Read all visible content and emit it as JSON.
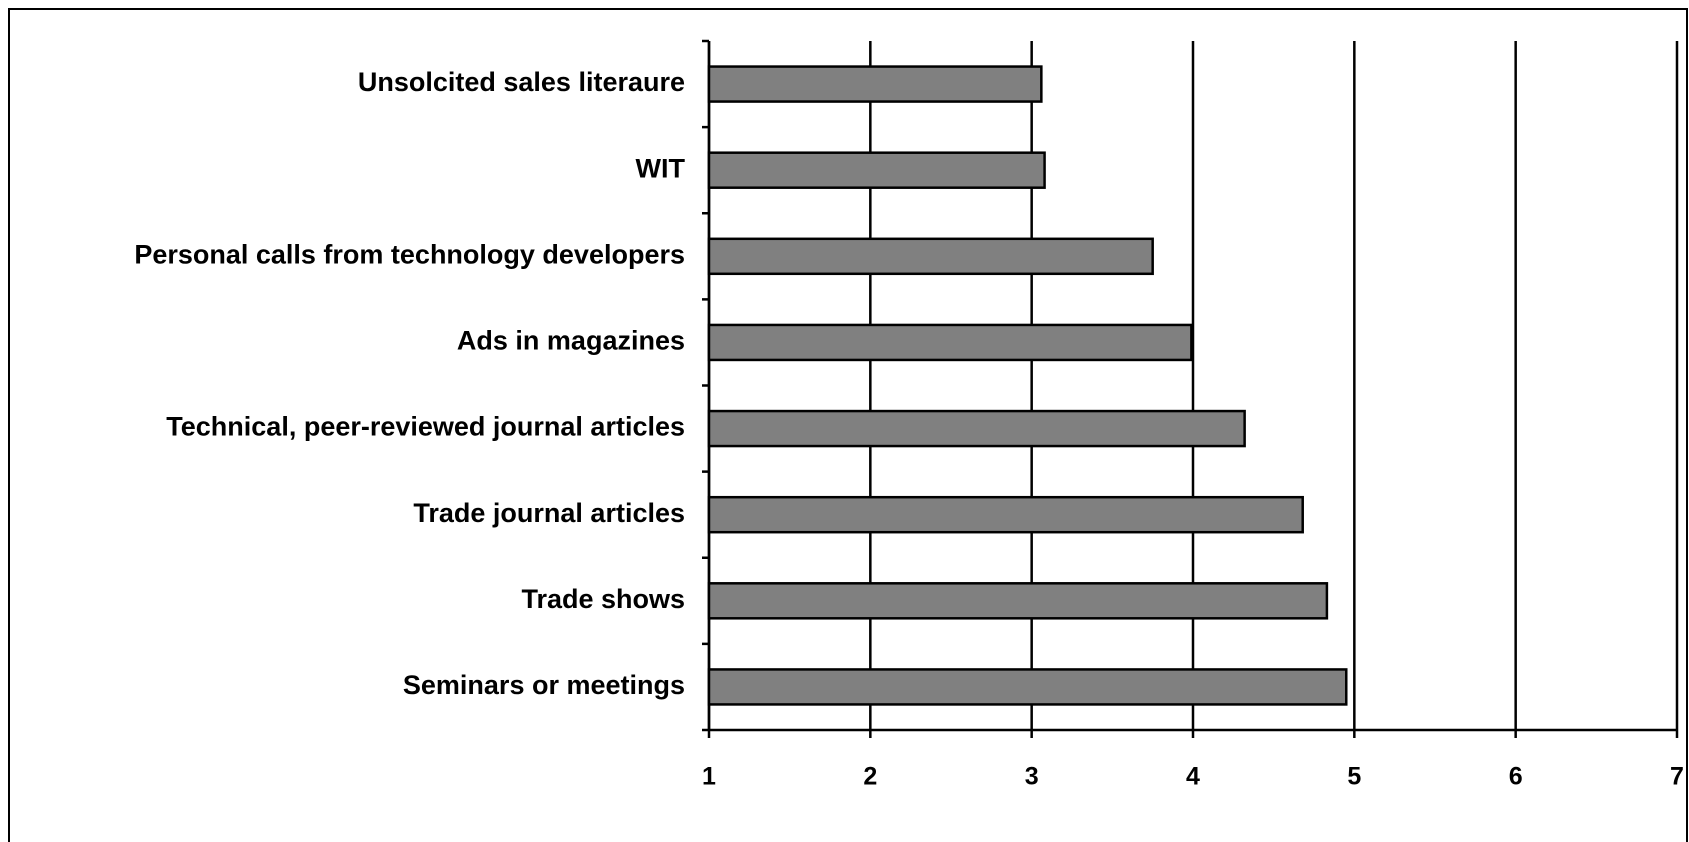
{
  "chart_data": {
    "type": "bar",
    "orientation": "horizontal",
    "categories": [
      "Unsolcited sales literaure",
      "WIT",
      "Personal calls from technology developers",
      "Ads in magazines",
      "Technical, peer-reviewed journal articles",
      "Trade journal articles",
      "Trade shows",
      "Seminars or meetings"
    ],
    "values": [
      3.06,
      3.08,
      3.75,
      3.99,
      4.32,
      4.68,
      4.83,
      4.95
    ],
    "color": "#808080",
    "xlim": [
      1,
      7
    ],
    "xticks": [
      1,
      2,
      3,
      4,
      5,
      6,
      7
    ],
    "grid": true
  }
}
